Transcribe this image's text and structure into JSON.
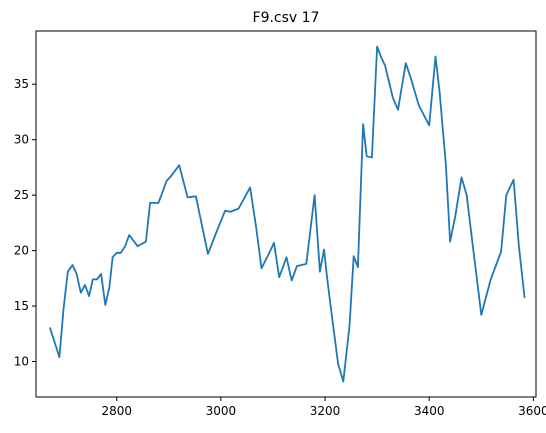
{
  "chart_data": {
    "type": "line",
    "title": "F9.csv 17",
    "xlabel": "",
    "ylabel": "",
    "xlim": [
      2645,
      3605
    ],
    "ylim": [
      6.8,
      39.8
    ],
    "xticks": [
      2800,
      3000,
      3200,
      3400,
      3600
    ],
    "yticks": [
      10,
      15,
      20,
      25,
      30,
      35
    ],
    "grid": false,
    "color": "#1f77b4",
    "series": [
      {
        "x": [
          2672,
          2690,
          2698,
          2706,
          2715,
          2723,
          2731,
          2739,
          2747,
          2754,
          2762,
          2770,
          2778,
          2786,
          2792,
          2800,
          2808,
          2816,
          2824,
          2832,
          2840,
          2848,
          2856,
          2864,
          2872,
          2880,
          2888,
          2896,
          2904,
          2920,
          2936,
          2952,
          2975,
          2990,
          3008,
          3018,
          3034,
          3056,
          3068,
          3078,
          3092,
          3102,
          3112,
          3126,
          3136,
          3146,
          3164,
          3180,
          3190,
          3198,
          3205,
          3215,
          3225,
          3235,
          3247,
          3255,
          3263,
          3273,
          3280,
          3290,
          3300,
          3308,
          3315,
          3330,
          3340,
          3355,
          3365,
          3380,
          3400,
          3412,
          3420,
          3432,
          3440,
          3450,
          3462,
          3472,
          3482,
          3500,
          3518,
          3538,
          3548,
          3562,
          3572,
          3583
        ],
        "y": [
          13.0,
          10.4,
          14.8,
          18.1,
          18.7,
          17.9,
          16.2,
          16.9,
          15.9,
          17.4,
          17.4,
          17.9,
          15.1,
          16.7,
          19.4,
          19.8,
          19.8,
          20.4,
          21.4,
          20.9,
          20.4,
          20.6,
          20.8,
          24.3,
          24.3,
          24.3,
          25.3,
          26.3,
          26.7,
          27.7,
          24.8,
          24.9,
          19.7,
          21.5,
          23.6,
          23.5,
          23.8,
          25.7,
          22.0,
          18.4,
          19.7,
          20.7,
          17.6,
          19.4,
          17.3,
          18.6,
          18.8,
          25.0,
          18.1,
          20.1,
          17.1,
          13.4,
          9.8,
          8.2,
          13.2,
          19.5,
          18.5,
          31.4,
          28.5,
          28.4,
          38.4,
          37.4,
          36.7,
          33.8,
          32.7,
          36.9,
          35.5,
          33.1,
          31.3,
          37.5,
          34.3,
          27.7,
          20.8,
          23.1,
          26.6,
          25.0,
          21.1,
          14.2,
          17.4,
          19.9,
          25.0,
          26.4,
          20.5,
          15.8
        ]
      }
    ]
  }
}
